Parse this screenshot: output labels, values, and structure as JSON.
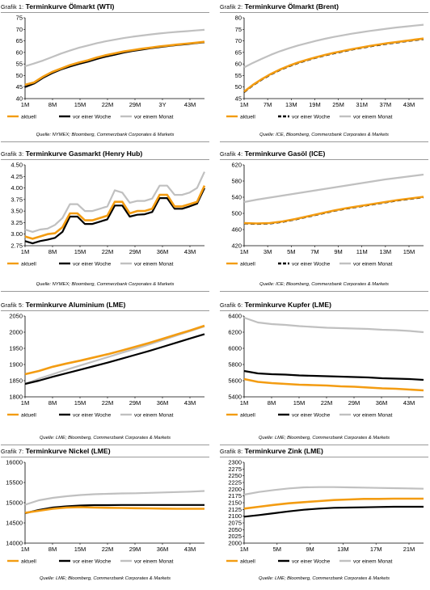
{
  "legend": {
    "current": "aktuell",
    "week": "vor einer Woche",
    "month": "vor einem Monat"
  },
  "colors": {
    "current": "#f39c12",
    "week": "#000000",
    "month": "#c0c0c0"
  },
  "panels": [
    {
      "prefix": "Grafik 1:",
      "title": "Terminkurve Ölmarkt (WTI)",
      "source": "Quelle: NYMEX; Bloomberg, Commerzbank Corporates & Markets",
      "chart_data": {
        "type": "line",
        "title": "Terminkurve Ölmarkt (WTI)",
        "ylim": [
          40,
          75
        ],
        "yticks": [
          "40",
          "45",
          "50",
          "55",
          "60",
          "65",
          "70",
          "75"
        ],
        "xticks": [
          "1M",
          "8M",
          "15M",
          "22M",
          "29M",
          "3Y",
          "43M"
        ],
        "week_dashed": false,
        "series": [
          {
            "key": "current",
            "values": [
              46,
              47,
              49.5,
              51.5,
              53,
              54.5,
              55.6,
              56.6,
              57.8,
              58.8,
              59.6,
              60.4,
              61,
              61.6,
              62.1,
              62.6,
              63,
              63.4,
              63.8,
              64.2,
              64.6
            ]
          },
          {
            "key": "week",
            "values": [
              45,
              46.5,
              49,
              51,
              52.6,
              53.9,
              55,
              56,
              57.2,
              58.2,
              59,
              59.9,
              60.6,
              61.2,
              61.8,
              62.3,
              62.8,
              63.2,
              63.6,
              64,
              64.4
            ]
          },
          {
            "key": "month",
            "values": [
              54,
              55.2,
              56.5,
              58,
              59.5,
              60.8,
              62,
              63,
              64,
              64.8,
              65.5,
              66.2,
              66.8,
              67.3,
              67.8,
              68.2,
              68.6,
              68.9,
              69.2,
              69.5,
              69.8
            ]
          }
        ]
      }
    },
    {
      "prefix": "Grafik 2:",
      "title": "Terminkurve Ölmarkt (Brent)",
      "source": "Quelle: ICE, Bloomberg, Commerzbank Corporates & Markets",
      "chart_data": {
        "type": "line",
        "title": "Terminkurve Ölmarkt (Brent)",
        "ylim": [
          45,
          80
        ],
        "yticks": [
          "45",
          "50",
          "55",
          "60",
          "65",
          "70",
          "75",
          "80"
        ],
        "xticks": [
          "1M",
          "7M",
          "13M",
          "19M",
          "25M",
          "31M",
          "37M",
          "43M"
        ],
        "week_dashed": true,
        "series": [
          {
            "key": "current",
            "values": [
              48,
              51,
              53.5,
              55.7,
              57.6,
              59.2,
              60.6,
              61.8,
              62.9,
              63.9,
              64.8,
              65.6,
              66.4,
              67.1,
              67.8,
              68.4,
              69,
              69.5,
              70,
              70.5,
              71
            ]
          },
          {
            "key": "week",
            "values": [
              47.8,
              50.8,
              53.3,
              55.5,
              57.4,
              59,
              60.4,
              61.6,
              62.7,
              63.7,
              64.6,
              65.4,
              66.2,
              66.9,
              67.6,
              68.2,
              68.8,
              69.3,
              69.8,
              70.3,
              70.8
            ]
          },
          {
            "key": "month",
            "values": [
              58.5,
              60.5,
              62.3,
              64,
              65.5,
              66.8,
              68,
              69,
              70,
              70.9,
              71.7,
              72.4,
              73.1,
              73.7,
              74.3,
              74.8,
              75.3,
              75.8,
              76.2,
              76.6,
              77
            ]
          }
        ]
      }
    },
    {
      "prefix": "Grafik 3:",
      "title": "Terminkurve Gasmarkt (Henry Hub)",
      "source": "Quelle: NYMEX; Bloomberg, Commerzbank Corporates & Markets",
      "chart_data": {
        "type": "line",
        "title": "Terminkurve Gasmarkt (Henry Hub)",
        "ylim": [
          2.75,
          4.5
        ],
        "yticks": [
          "2.75",
          "3.00",
          "3.25",
          "3.50",
          "3.75",
          "4.00",
          "4.25",
          "4.50"
        ],
        "xticks": [
          "1M",
          "8M",
          "15M",
          "22M",
          "29M",
          "36M",
          "43M"
        ],
        "week_dashed": false,
        "series": [
          {
            "key": "current",
            "values": [
              2.95,
              2.9,
              2.95,
              3.0,
              3.02,
              3.15,
              3.45,
              3.45,
              3.3,
              3.3,
              3.35,
              3.4,
              3.7,
              3.7,
              3.45,
              3.5,
              3.5,
              3.55,
              3.85,
              3.85,
              3.6,
              3.6,
              3.65,
              3.7,
              4.05
            ]
          },
          {
            "key": "week",
            "values": [
              2.85,
              2.8,
              2.85,
              2.88,
              2.92,
              3.05,
              3.38,
              3.38,
              3.22,
              3.22,
              3.27,
              3.32,
              3.62,
              3.62,
              3.38,
              3.42,
              3.43,
              3.48,
              3.78,
              3.78,
              3.55,
              3.55,
              3.6,
              3.66,
              4.0
            ]
          },
          {
            "key": "month",
            "values": [
              3.1,
              3.05,
              3.1,
              3.12,
              3.2,
              3.35,
              3.65,
              3.65,
              3.5,
              3.5,
              3.55,
              3.6,
              3.95,
              3.9,
              3.68,
              3.72,
              3.72,
              3.77,
              4.05,
              4.05,
              3.85,
              3.85,
              3.9,
              4.0,
              4.35
            ]
          }
        ]
      }
    },
    {
      "prefix": "Grafik 4:",
      "title": "Terminkurve Gasöl (ICE)",
      "source": "Quelle: ICE; Bloomberg, Commerzbank Corporates & Markets",
      "chart_data": {
        "type": "line",
        "title": "Terminkurve Gasöl (ICE)",
        "ylim": [
          420,
          620
        ],
        "yticks": [
          "420",
          "460",
          "500",
          "540",
          "580",
          "620"
        ],
        "xticks": [
          "1M",
          "3M",
          "5M",
          "7M",
          "9M",
          "11M",
          "13M",
          "15M"
        ],
        "week_dashed": true,
        "series": [
          {
            "key": "current",
            "values": [
              476,
              475,
              476,
              480,
              486,
              493,
              500,
              507,
              513,
              518,
              523,
              528,
              533,
              537,
              541
            ]
          },
          {
            "key": "week",
            "values": [
              475,
              474,
              475,
              479,
              485,
              492,
              499,
              506,
              512,
              517,
              522,
              527,
              532,
              536,
              540
            ]
          },
          {
            "key": "month",
            "values": [
              528,
              534,
              539,
              544,
              549,
              554,
              559,
              564,
              569,
              574,
              579,
              584,
              588,
              592,
              596
            ]
          }
        ]
      }
    },
    {
      "prefix": "Grafik 5:",
      "title": "Terminkurve Aluminium (LME)",
      "source": "Quelle: LME; Bloomberg, Commerzbank Corporates & Markets",
      "chart_data": {
        "type": "line",
        "title": "Terminkurve Aluminium (LME)",
        "ylim": [
          1800,
          2050
        ],
        "yticks": [
          "1800",
          "1850",
          "1900",
          "1950",
          "2000",
          "2050"
        ],
        "xticks": [
          "1M",
          "8M",
          "15M",
          "22M",
          "29M",
          "36M",
          "43M"
        ],
        "week_dashed": false,
        "series": [
          {
            "key": "current",
            "values": [
              1870,
              1880,
              1893,
              1903,
              1912,
              1922,
              1932,
              1943,
              1955,
              1967,
              1980,
              1993,
              2006,
              2020
            ]
          },
          {
            "key": "week",
            "values": [
              1840,
              1850,
              1862,
              1873,
              1884,
              1895,
              1906,
              1918,
              1930,
              1942,
              1955,
              1968,
              1981,
              1994
            ]
          },
          {
            "key": "month",
            "values": [
              1840,
              1856,
              1870,
              1884,
              1897,
              1910,
              1923,
              1936,
              1949,
              1962,
              1976,
              1990,
              2004,
              2018
            ]
          }
        ]
      }
    },
    {
      "prefix": "Grafik 6:",
      "title": "Terminkurve Kupfer (LME)",
      "source": "Quelle: LME; Bloomberg, Commerzbank Corporates & Markets",
      "chart_data": {
        "type": "line",
        "title": "Terminkurve Kupfer (LME)",
        "ylim": [
          5400,
          6400
        ],
        "yticks": [
          "5400",
          "5600",
          "5800",
          "6000",
          "6200",
          "6400"
        ],
        "xticks": [
          "1M",
          "8M",
          "15M",
          "22M",
          "29M",
          "36M",
          "43M"
        ],
        "week_dashed": false,
        "series": [
          {
            "key": "current",
            "values": [
              5620,
              5585,
              5570,
              5560,
              5550,
              5545,
              5540,
              5530,
              5525,
              5515,
              5505,
              5500,
              5490,
              5480
            ]
          },
          {
            "key": "week",
            "values": [
              5720,
              5690,
              5680,
              5675,
              5665,
              5660,
              5655,
              5650,
              5645,
              5640,
              5630,
              5625,
              5620,
              5610
            ]
          },
          {
            "key": "month",
            "values": [
              6380,
              6320,
              6300,
              6290,
              6275,
              6265,
              6255,
              6250,
              6245,
              6240,
              6230,
              6225,
              6215,
              6200
            ]
          }
        ]
      }
    },
    {
      "prefix": "Grafik 7:",
      "title": "Terminkurve Nickel (LME)",
      "source": "Quelle: LME; Bloomberg, Commerzbank Corporates & Markets",
      "chart_data": {
        "type": "line",
        "title": "Terminkurve Nickel (LME)",
        "ylim": [
          14000,
          16000
        ],
        "yticks": [
          "14000",
          "14500",
          "15000",
          "15500",
          "16000"
        ],
        "xticks": [
          "1M",
          "8M",
          "15M",
          "22M",
          "29M",
          "36M",
          "43M"
        ],
        "week_dashed": false,
        "series": [
          {
            "key": "current",
            "values": [
              14750,
              14800,
              14850,
              14880,
              14890,
              14880,
              14875,
              14870,
              14865,
              14860,
              14855,
              14850,
              14850,
              14850
            ]
          },
          {
            "key": "week",
            "values": [
              14740,
              14820,
              14880,
              14910,
              14930,
              14940,
              14940,
              14945,
              14945,
              14945,
              14945,
              14945,
              14945,
              14945
            ]
          },
          {
            "key": "month",
            "values": [
              14950,
              15060,
              15120,
              15160,
              15190,
              15210,
              15220,
              15230,
              15235,
              15245,
              15255,
              15265,
              15275,
              15290
            ]
          }
        ]
      }
    },
    {
      "prefix": "Grafik 8:",
      "title": "Terminkurve Zink (LME)",
      "source": "Quelle: LME; Bloomberg, Commerzbank Corporates & Markets",
      "chart_data": {
        "type": "line",
        "title": "Terminkurve Zink (LME)",
        "ylim": [
          2000,
          2300
        ],
        "yticks": [
          "2000",
          "2025",
          "2050",
          "2075",
          "2100",
          "2125",
          "2150",
          "2175",
          "2200",
          "2225",
          "2250",
          "2275",
          "2300"
        ],
        "xticks": [
          "1M",
          "5M",
          "9M",
          "13M",
          "17M",
          "21M"
        ],
        "week_dashed": false,
        "series": [
          {
            "key": "current",
            "values": [
              2128,
              2135,
              2142,
              2148,
              2152,
              2156,
              2160,
              2162,
              2164,
              2164,
              2165,
              2165,
              2165
            ]
          },
          {
            "key": "week",
            "values": [
              2098,
              2104,
              2111,
              2118,
              2124,
              2128,
              2131,
              2132,
              2133,
              2134,
              2135,
              2135,
              2135
            ]
          },
          {
            "key": "month",
            "values": [
              2180,
              2190,
              2197,
              2203,
              2207,
              2208,
              2208,
              2207,
              2206,
              2205,
              2204,
              2203,
              2202
            ]
          }
        ]
      }
    }
  ]
}
